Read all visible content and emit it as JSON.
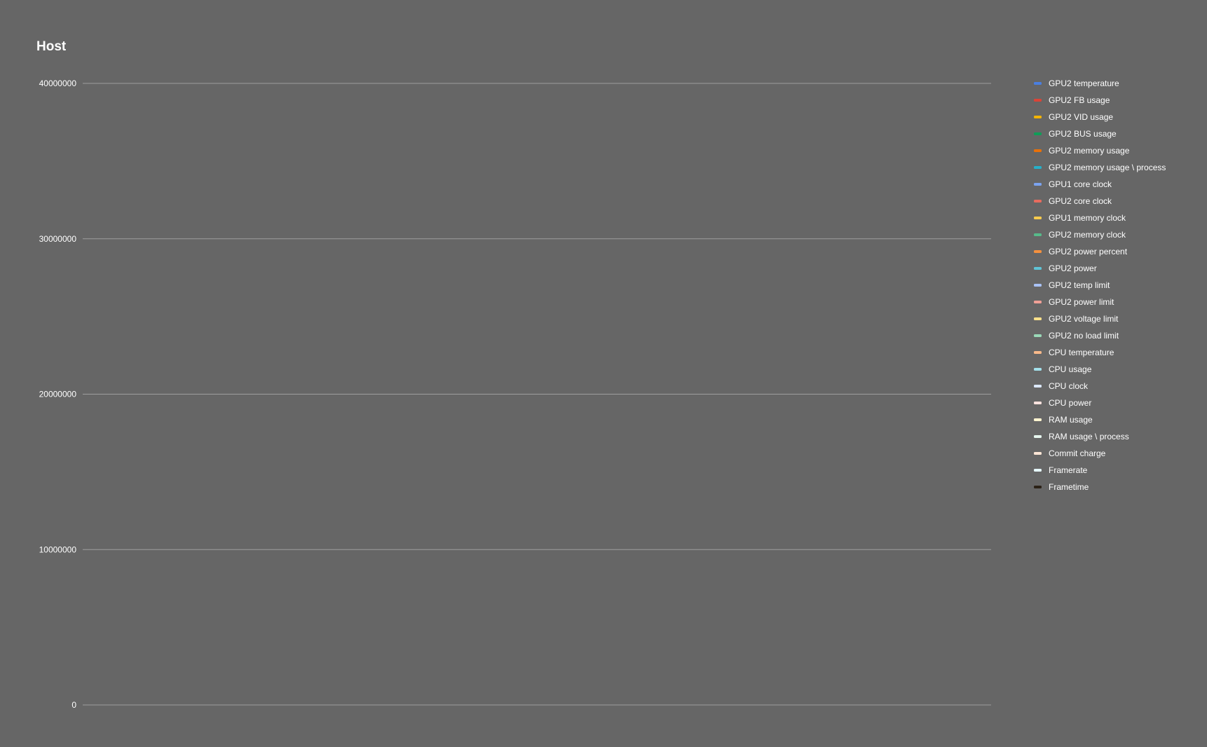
{
  "chart_data": {
    "type": "line",
    "title": "Host",
    "xlabel": "",
    "ylabel": "",
    "ylim": [
      0,
      40000000
    ],
    "yticks": [
      0,
      10000000,
      20000000,
      30000000,
      40000000
    ],
    "ytick_labels": [
      "0",
      "10000000",
      "20000000",
      "30000000",
      "40000000"
    ],
    "grid": true,
    "legend_position": "right",
    "x_count": 160,
    "background": "#666666",
    "series": [
      {
        "name": "GPU2 temperature",
        "color": "#4a7fe0",
        "values": []
      },
      {
        "name": "GPU2 FB usage",
        "color": "#db4437",
        "values": []
      },
      {
        "name": "GPU2 VID usage",
        "color": "#f4b400",
        "values": []
      },
      {
        "name": "GPU2 BUS usage",
        "color": "#0f9d58",
        "values": []
      },
      {
        "name": "GPU2 memory usage",
        "color": "#e8710a",
        "values": []
      },
      {
        "name": "GPU2 memory usage \\ process",
        "color": "#26b0c9",
        "values": []
      },
      {
        "name": "GPU1 core clock",
        "color": "#7ba3f0",
        "values": []
      },
      {
        "name": "GPU2 core clock",
        "color": "#e86c5e",
        "values": []
      },
      {
        "name": "GPU1 memory clock",
        "color": "#f7cb4d",
        "values": []
      },
      {
        "name": "GPU2 memory clock",
        "color": "#57bb8a",
        "values": []
      },
      {
        "name": "GPU2 power percent",
        "color": "#f5913e",
        "values": []
      },
      {
        "name": "GPU2 power",
        "color": "#5fc4d6",
        "values": []
      },
      {
        "name": "GPU2 temp limit",
        "color": "#a9c2f5",
        "values": []
      },
      {
        "name": "GPU2 power limit",
        "color": "#f0a097",
        "values": []
      },
      {
        "name": "GPU2 voltage limit",
        "color": "#fbe08a",
        "values": []
      },
      {
        "name": "GPU2 no load limit",
        "color": "#9ad9b8",
        "values": []
      },
      {
        "name": "CPU temperature",
        "color": "#f8b98a",
        "values": []
      },
      {
        "name": "CPU usage",
        "color": "#a3e0eb",
        "values": []
      },
      {
        "name": "CPU clock",
        "color": "#dce8fc",
        "values": []
      },
      {
        "name": "CPU power",
        "color": "#fbe2de",
        "values": []
      },
      {
        "name": "RAM usage",
        "color": "#fff4d0",
        "values": []
      },
      {
        "name": "RAM usage \\ process",
        "color": "#e6f6ee",
        "values": []
      },
      {
        "name": "Commit charge",
        "color": "#fde6d6",
        "values": []
      },
      {
        "name": "Framerate",
        "color": "#e6f7fa",
        "values": []
      },
      {
        "name": "Frametime",
        "color": "#2b2116",
        "values": []
      }
    ]
  }
}
